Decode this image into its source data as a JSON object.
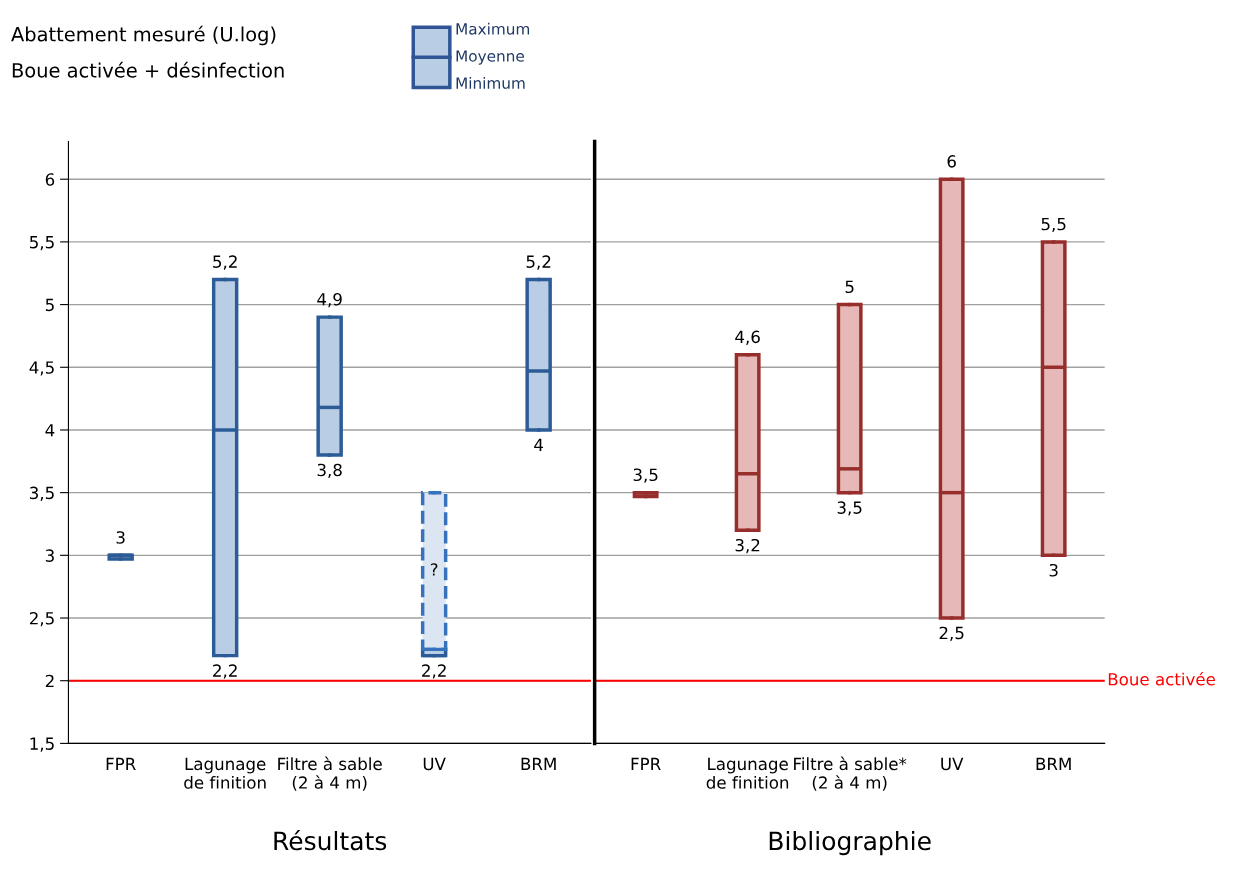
{
  "chart_data": [
    {
      "type": "box",
      "title": "Boue activée + désinfection",
      "ylabel": "Abattement mesuré (U.log)",
      "xlabel": "Résultats",
      "categories": [
        "FPR",
        "Lagunage\nde finition",
        "Filtre à sable\n(2 à 4 m)",
        "UV",
        "BRM"
      ],
      "series": [
        {
          "color": "#b9cde5",
          "boxes": [
            {
              "low": 2.97,
              "q1": 2.97,
              "median": 3.0,
              "q3": 3.0,
              "high": 3.0
            },
            {
              "low": 2.2,
              "q1": 2.2,
              "median": 4.0,
              "q3": 5.2,
              "high": 5.2
            },
            {
              "low": 3.8,
              "q1": 3.8,
              "median": 4.18,
              "q3": 4.9,
              "high": 4.9
            },
            {
              "low": 2.2,
              "q1": 2.2,
              "median": 2.2,
              "q3": 2.25,
              "high": 2.25
            },
            {
              "low": 4.0,
              "q1": 4.0,
              "median": 4.47,
              "q3": 5.2,
              "high": 5.2
            }
          ]
        },
        {
          "name": "?",
          "color": "#dce6f2",
          "line_style": "dashed",
          "boxes": [
            null,
            null,
            null,
            {
              "low": 2.25,
              "q1": 2.25,
              "median": 2.25,
              "q3": 3.5,
              "high": 3.5
            },
            null
          ]
        }
      ],
      "ylim": [
        1.5,
        6.3
      ],
      "yticks": [
        {
          "value": 1.5,
          "label": "1,5"
        },
        2,
        {
          "value": 2.5,
          "label": "2,5"
        },
        3,
        {
          "value": 3.5,
          "label": "3,5"
        },
        4,
        {
          "value": 4.5,
          "label": "4,5"
        },
        5,
        {
          "value": 5.5,
          "label": "5,5"
        },
        6
      ],
      "grid": "y",
      "ref_lines": [
        {
          "axis": "y",
          "value": 2,
          "color": "#ff0000"
        }
      ],
      "annotations": [
        "Maximum",
        "Moyenne",
        "Minimum",
        {
          "text": "3",
          "x": "FPR",
          "y": 3
        },
        {
          "text": "5,2",
          "x": "Lagunage\nde finition",
          "y": 5.2
        },
        {
          "text": "2,2",
          "x": "Lagunage\nde finition",
          "y": 2.2
        },
        {
          "text": "4,9",
          "x": "Filtre à sable\n(2 à 4 m)",
          "y": 4.9
        },
        {
          "text": "3,8",
          "x": "Filtre à sable\n(2 à 4 m)",
          "y": 3.8
        },
        {
          "text": "2,2",
          "x": "UV",
          "y": 2.2
        },
        {
          "text": "5,2",
          "x": "BRM",
          "y": 5.2
        },
        {
          "text": "4",
          "x": "BRM",
          "y": 4
        }
      ]
    },
    {
      "type": "box",
      "xlabel": "Bibliographie",
      "categories": [
        "FPR",
        "Lagunage\nde finition",
        "Filtre à sable*\n(2 à 4 m)",
        "UV",
        "BRM"
      ],
      "series": [
        {
          "color": "#e6b9b8",
          "boxes": [
            {
              "low": 3.47,
              "q1": 3.47,
              "median": 3.5,
              "q3": 3.5,
              "high": 3.5
            },
            {
              "low": 3.2,
              "q1": 3.2,
              "median": 3.65,
              "q3": 4.6,
              "high": 4.6
            },
            {
              "low": 3.5,
              "q1": 3.5,
              "median": 3.69,
              "q3": 5.0,
              "high": 5.0
            },
            {
              "low": 2.5,
              "q1": 2.5,
              "median": 3.5,
              "q3": 6.0,
              "high": 6.0
            },
            {
              "low": 3.0,
              "q1": 3.0,
              "median": 4.5,
              "q3": 5.5,
              "high": 5.5
            }
          ]
        }
      ],
      "ylim": [
        1.5,
        6.3
      ],
      "yticks": [
        {
          "value": 1.5,
          "label": null
        },
        {
          "value": 2,
          "label": null
        },
        {
          "value": 2.5,
          "label": null
        },
        {
          "value": 3,
          "label": null
        },
        {
          "value": 3.5,
          "label": null
        },
        {
          "value": 4,
          "label": null
        },
        {
          "value": 4.5,
          "label": null
        },
        {
          "value": 5,
          "label": null
        },
        {
          "value": 5.5,
          "label": null
        },
        {
          "value": 6,
          "label": null
        }
      ],
      "tick_labels": "x",
      "grid": "y",
      "ref_lines": [
        {
          "axis": "y",
          "value": 2,
          "label": "Boue activée",
          "color": "#ff0000"
        }
      ],
      "annotations": [
        {
          "text": "3,5",
          "x": "FPR",
          "y": 3.5
        },
        {
          "text": "4,6",
          "x": "Lagunage\nde finition",
          "y": 4.6
        },
        {
          "text": "3,2",
          "x": "Lagunage\nde finition",
          "y": 3.2
        },
        {
          "text": "5",
          "x": "Filtre à sable*\n(2 à 4 m)",
          "y": 5
        },
        {
          "text": "3,5",
          "x": "Filtre à sable*\n(2 à 4 m)",
          "y": 3.5
        },
        {
          "text": "6",
          "x": "UV",
          "y": 6
        },
        {
          "text": "2,5",
          "x": "UV",
          "y": 2.5
        },
        {
          "text": "5,5",
          "x": "BRM",
          "y": 5.5
        },
        {
          "text": "3",
          "x": "BRM",
          "y": 3
        }
      ]
    }
  ]
}
